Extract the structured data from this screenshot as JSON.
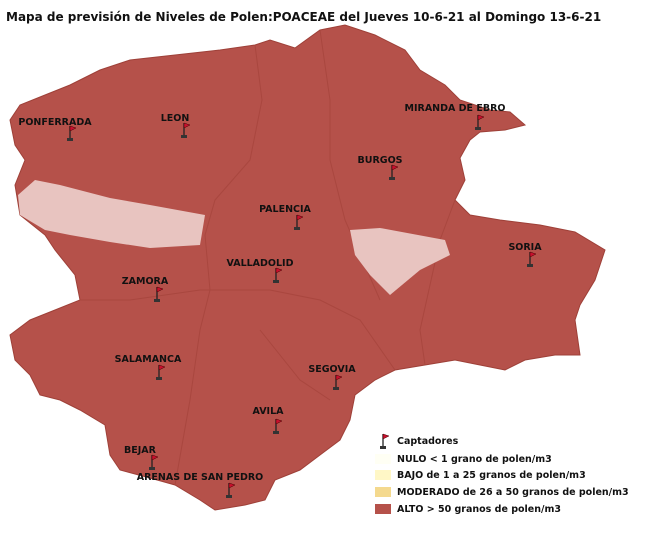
{
  "header": {
    "title": "Mapa de previsión de Niveles de Polen:POACEAE  del Jueves 10-6-21 al Domingo 13-6-21"
  },
  "stations": [
    "PONFERRADA",
    "LEON",
    "MIRANDA DE EBRO",
    "BURGOS",
    "PALENCIA",
    "SORIA",
    "VALLADOLID",
    "ZAMORA",
    "SALAMANCA",
    "SEGOVIA",
    "AVILA",
    "BEJAR",
    "ARENAS DE SAN PEDRO"
  ],
  "legend": {
    "stations_label": "Captadores",
    "levels": [
      "NULO < 1 grano de polen/m3",
      "BAJO de 1 a 25 granos de polen/m3",
      "MODERADO de 26 a 50 granos de polen/m3",
      "ALTO > 50 granos de polen/m3"
    ]
  }
}
